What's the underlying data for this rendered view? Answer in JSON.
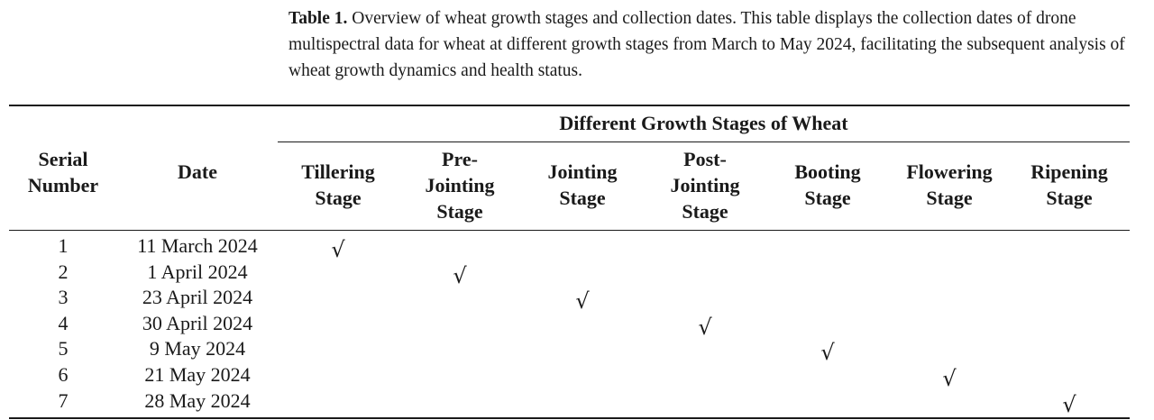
{
  "caption": {
    "label": "Table 1.",
    "text": " Overview of wheat growth stages and collection dates. This table displays the collection dates of drone multispectral data for wheat at different growth stages from March to May 2024, facilitating the subsequent analysis of wheat growth dynamics and health status."
  },
  "table": {
    "group_header": "Different Growth Stages of Wheat",
    "col_serial": [
      "Serial",
      "Number"
    ],
    "col_date": [
      "Date"
    ],
    "stages": [
      [
        "Tillering",
        "Stage"
      ],
      [
        "Pre-",
        "Jointing",
        "Stage"
      ],
      [
        "Jointing",
        "Stage"
      ],
      [
        "Post-",
        "Jointing",
        "Stage"
      ],
      [
        "Booting",
        "Stage"
      ],
      [
        "Flowering",
        "Stage"
      ],
      [
        "Ripening",
        "Stage"
      ]
    ],
    "check_symbol": "√",
    "rows": [
      {
        "serial": "1",
        "date": "11 March 2024",
        "stage_index": 0
      },
      {
        "serial": "2",
        "date": "1 April 2024",
        "stage_index": 1
      },
      {
        "serial": "3",
        "date": "23 April 2024",
        "stage_index": 2
      },
      {
        "serial": "4",
        "date": "30 April 2024",
        "stage_index": 3
      },
      {
        "serial": "5",
        "date": "9 May 2024",
        "stage_index": 4
      },
      {
        "serial": "6",
        "date": "21 May 2024",
        "stage_index": 5
      },
      {
        "serial": "7",
        "date": "28 May 2024",
        "stage_index": 6
      }
    ]
  }
}
